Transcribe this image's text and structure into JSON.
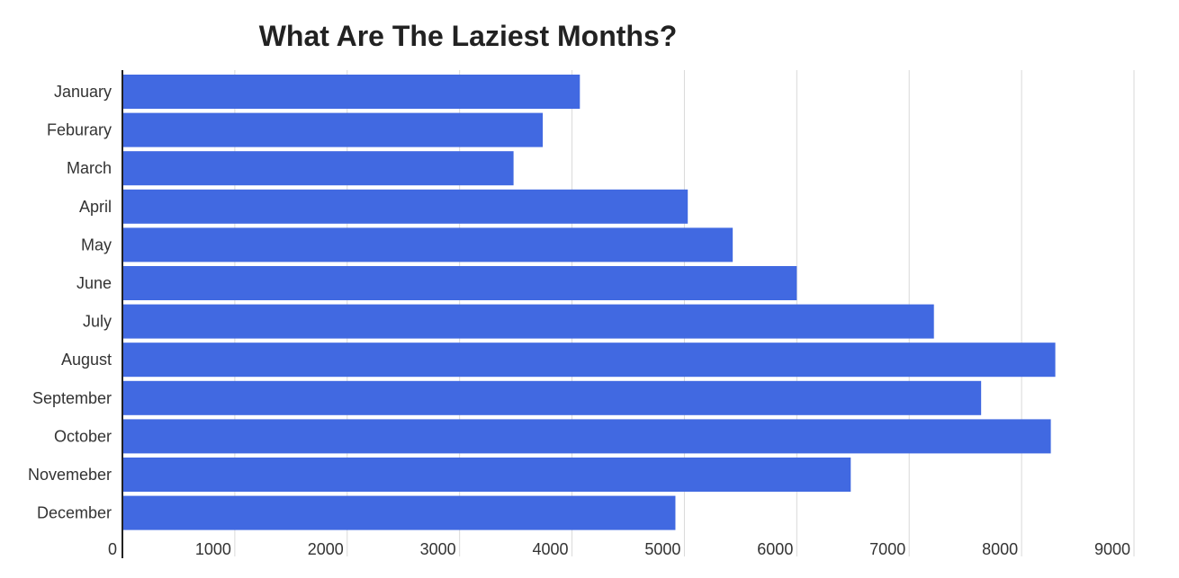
{
  "chart_data": {
    "type": "bar",
    "orientation": "horizontal",
    "title": "What Are The Laziest Months?",
    "xlabel": "",
    "ylabel": "",
    "categories": [
      "January",
      "Feburary",
      "March",
      "April",
      "May",
      "June",
      "July",
      "August",
      "September",
      "October",
      "Novemeber",
      "December"
    ],
    "values": [
      4070,
      3740,
      3480,
      5030,
      5430,
      6000,
      7220,
      8300,
      7640,
      8260,
      6480,
      4920
    ],
    "xlim": [
      0,
      9000
    ],
    "xticks": [
      "0",
      "1000",
      "2000",
      "3000",
      "4000",
      "5000",
      "6000",
      "7000",
      "8000",
      "9000"
    ],
    "grid": "vertical",
    "legend": "none",
    "colors": {
      "bar": "#4169e1",
      "grid": "#d9d9d9",
      "axis": "#222222",
      "text": "#333333"
    }
  }
}
